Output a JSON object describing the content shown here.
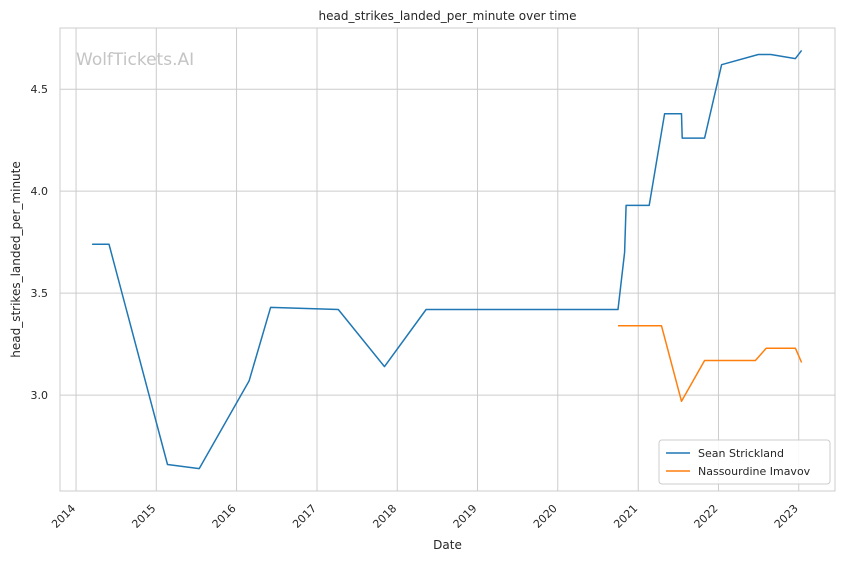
{
  "watermark": "WolfTickets.AI",
  "chart_data": {
    "type": "line",
    "title": "head_strikes_landed_per_minute over time",
    "xlabel": "Date",
    "ylabel": "head_strikes_landed_per_minute",
    "x_ticks": [
      "2014",
      "2015",
      "2016",
      "2017",
      "2018",
      "2019",
      "2020",
      "2021",
      "2022",
      "2023"
    ],
    "y_ticks": [
      "3.0",
      "3.5",
      "4.0",
      "4.5"
    ],
    "xlim": [
      "2013-10-20",
      "2023-06-15"
    ],
    "ylim": [
      2.53,
      4.8
    ],
    "grid": true,
    "legend_position": "lower-right",
    "series": [
      {
        "name": "Sean Strickland",
        "color": "#1f77b4",
        "points": [
          [
            "2014-03-15",
            3.74
          ],
          [
            "2014-05-31",
            3.74
          ],
          [
            "2015-02-21",
            2.66
          ],
          [
            "2015-07-15",
            2.64
          ],
          [
            "2016-02-27",
            3.07
          ],
          [
            "2016-06-04",
            3.43
          ],
          [
            "2017-04-08",
            3.42
          ],
          [
            "2017-11-04",
            3.14
          ],
          [
            "2018-05-12",
            3.42
          ],
          [
            "2018-10-27",
            3.42
          ],
          [
            "2020-10-01",
            3.42
          ],
          [
            "2020-10-31",
            3.7
          ],
          [
            "2020-11-07",
            3.93
          ],
          [
            "2021-02-20",
            3.93
          ],
          [
            "2021-05-01",
            4.38
          ],
          [
            "2021-07-17",
            4.38
          ],
          [
            "2021-07-20",
            4.26
          ],
          [
            "2021-10-30",
            4.26
          ],
          [
            "2022-01-15",
            4.62
          ],
          [
            "2022-07-01",
            4.67
          ],
          [
            "2022-08-27",
            4.67
          ],
          [
            "2022-12-17",
            4.65
          ],
          [
            "2023-01-14",
            4.69
          ]
        ]
      },
      {
        "name": "Nassourdine Imavov",
        "color": "#ff7f0e",
        "points": [
          [
            "2020-10-01",
            3.34
          ],
          [
            "2021-04-17",
            3.34
          ],
          [
            "2021-07-17",
            2.97
          ],
          [
            "2021-10-30",
            3.17
          ],
          [
            "2022-06-18",
            3.17
          ],
          [
            "2022-08-06",
            3.23
          ],
          [
            "2022-12-17",
            3.23
          ],
          [
            "2023-01-14",
            3.16
          ]
        ]
      }
    ]
  }
}
